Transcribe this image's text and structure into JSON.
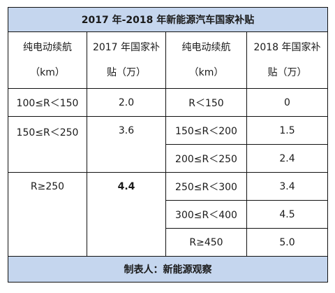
{
  "title": "2017 年-2018 年新能源汽车国家补贴",
  "headers": {
    "range_2017_line1": "纯电动续航",
    "range_2017_line2": "（km）",
    "subsidy_2017_line1": "2017 年国家补",
    "subsidy_2017_line2": "贴（万）",
    "range_2018_line1": "纯电动续航",
    "range_2018_line2": "（km）",
    "subsidy_2018_line1": "2018 年国家补",
    "subsidy_2018_line2": "贴（万）"
  },
  "rows_2017": [
    {
      "range": "100≤R＜150",
      "subsidy": "2.0"
    },
    {
      "range": "150≤R＜250",
      "subsidy": "3.6"
    },
    {
      "range": "R≥250",
      "subsidy": "4.4"
    }
  ],
  "rows_2018": [
    {
      "range": "R＜150",
      "subsidy": "0"
    },
    {
      "range": "150≤R＜200",
      "subsidy": "1.5"
    },
    {
      "range": "200≤R＜250",
      "subsidy": "2.4"
    },
    {
      "range": "250≤R＜300",
      "subsidy": "3.4"
    },
    {
      "range": "300≤R＜400",
      "subsidy": "4.5"
    },
    {
      "range": "R≥450",
      "subsidy": "5.0"
    }
  ],
  "footer": "制表人：新能源观察"
}
